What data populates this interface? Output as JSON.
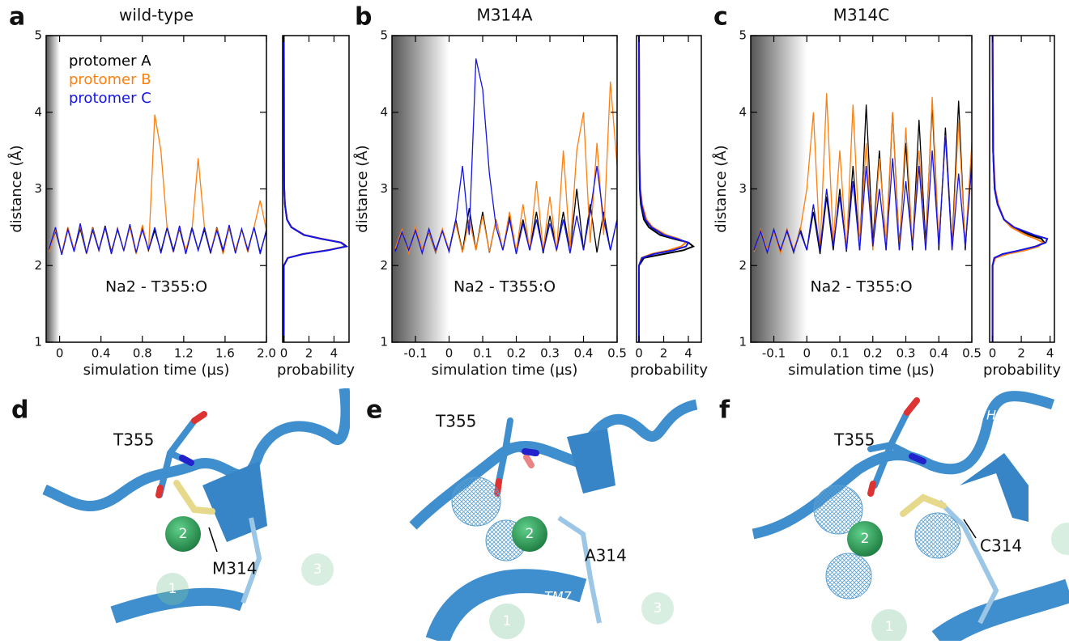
{
  "chart_data": [
    {
      "type": "line",
      "panel_label": "a",
      "title": "wild-type",
      "x_label": "simulation time (µs)",
      "y_label": "distance (Å)",
      "annotation": "Na2 - T355:O",
      "xlim": [
        -0.13,
        2.0
      ],
      "xticks": [
        0,
        0.4,
        0.8,
        1.2,
        1.6,
        {
          "value": 2,
          "label": "2.0"
        }
      ],
      "ylim": [
        1,
        5
      ],
      "yticks": [
        1,
        2,
        3,
        4,
        5
      ],
      "shaded_region": [
        -0.13,
        0
      ],
      "x": [
        -0.1,
        -0.04,
        0.02,
        0.08,
        0.14,
        0.2,
        0.26,
        0.32,
        0.38,
        0.44,
        0.5,
        0.56,
        0.62,
        0.68,
        0.74,
        0.8,
        0.86,
        0.92,
        0.98,
        1.04,
        1.1,
        1.16,
        1.22,
        1.28,
        1.34,
        1.4,
        1.46,
        1.52,
        1.58,
        1.64,
        1.7,
        1.76,
        1.82,
        1.88,
        1.94,
        2.0
      ],
      "series": [
        {
          "name": "protomer A",
          "color": "#000000",
          "values": [
            2.2,
            2.45,
            2.15,
            2.5,
            2.2,
            2.48,
            2.15,
            2.5,
            2.2,
            2.52,
            2.18,
            2.47,
            2.2,
            2.5,
            2.16,
            2.49,
            2.2,
            2.46,
            2.18,
            2.5,
            2.2,
            2.48,
            2.17,
            2.5,
            2.2,
            2.47,
            2.16,
            2.5,
            2.2,
            2.49,
            2.18,
            2.47,
            2.2,
            2.5,
            2.17,
            2.45
          ]
        },
        {
          "name": "protomer B",
          "color": "#ff7f0e",
          "values": [
            2.18,
            2.47,
            2.16,
            2.5,
            2.2,
            2.52,
            2.15,
            2.48,
            2.19,
            2.5,
            2.16,
            2.49,
            2.2,
            2.5,
            2.15,
            2.53,
            2.18,
            3.97,
            3.5,
            2.48,
            2.17,
            2.5,
            2.2,
            2.47,
            3.4,
            2.5,
            2.18,
            2.49,
            2.15,
            2.5,
            2.2,
            2.47,
            2.17,
            2.5,
            2.85,
            2.46
          ]
        },
        {
          "name": "protomer C",
          "color": "#1414e6",
          "values": [
            2.22,
            2.5,
            2.14,
            2.47,
            2.18,
            2.55,
            2.16,
            2.46,
            2.2,
            2.5,
            2.15,
            2.48,
            2.19,
            2.54,
            2.17,
            2.47,
            2.2,
            2.5,
            2.16,
            2.49,
            2.18,
            2.52,
            2.15,
            2.48,
            2.2,
            2.5,
            2.17,
            2.46,
            2.19,
            2.53,
            2.16,
            2.48,
            2.2,
            2.5,
            2.15,
            2.47
          ]
        }
      ]
    },
    {
      "type": "density",
      "x_label": "probability",
      "xlim": [
        -0.1,
        5.2
      ],
      "xticks": [
        0,
        2,
        4
      ],
      "ylim": [
        1,
        5
      ],
      "y": [
        1,
        2.0,
        2.1,
        2.15,
        2.2,
        2.25,
        2.3,
        2.35,
        2.4,
        2.5,
        2.6,
        2.8,
        3.0,
        3.5,
        5
      ],
      "series": [
        {
          "color": "#000000",
          "values": [
            0,
            0,
            0.3,
            1.5,
            3.5,
            5.0,
            4.6,
            3.0,
            1.6,
            0.6,
            0.25,
            0.08,
            0.03,
            0.01,
            0
          ]
        },
        {
          "color": "#ff7f0e",
          "values": [
            0,
            0,
            0.3,
            1.5,
            3.45,
            4.9,
            4.6,
            3.05,
            1.65,
            0.62,
            0.26,
            0.09,
            0.03,
            0.01,
            0
          ]
        },
        {
          "color": "#1414e6",
          "values": [
            0,
            0,
            0.32,
            1.55,
            3.55,
            4.95,
            4.55,
            2.95,
            1.6,
            0.6,
            0.25,
            0.08,
            0.03,
            0.01,
            0
          ]
        }
      ]
    },
    {
      "type": "line",
      "panel_label": "b",
      "title": "M314A",
      "x_label": "simulation time (µs)",
      "y_label": "distance (Å)",
      "annotation": "Na2 - T355:O",
      "xlim": [
        -0.17,
        0.5
      ],
      "xticks": [
        -0.1,
        0,
        0.1,
        0.2,
        0.3,
        0.4,
        0.5
      ],
      "ylim": [
        1,
        5
      ],
      "yticks": [
        1,
        2,
        3,
        4,
        5
      ],
      "shaded_region": [
        -0.17,
        0
      ],
      "x": [
        -0.16,
        -0.14,
        -0.12,
        -0.1,
        -0.08,
        -0.06,
        -0.04,
        -0.02,
        0,
        0.02,
        0.04,
        0.06,
        0.08,
        0.1,
        0.12,
        0.14,
        0.16,
        0.18,
        0.2,
        0.22,
        0.24,
        0.26,
        0.28,
        0.3,
        0.32,
        0.34,
        0.36,
        0.38,
        0.4,
        0.42,
        0.44,
        0.46,
        0.48,
        0.5
      ],
      "series": [
        {
          "color": "#000000",
          "values": [
            2.2,
            2.45,
            2.18,
            2.47,
            2.2,
            2.44,
            2.17,
            2.46,
            2.2,
            2.6,
            2.18,
            2.75,
            2.2,
            2.7,
            2.17,
            2.6,
            2.2,
            2.65,
            2.18,
            2.6,
            2.2,
            2.7,
            2.16,
            2.65,
            2.2,
            2.7,
            2.18,
            3.0,
            2.2,
            2.8,
            2.17,
            2.7,
            2.2,
            2.6
          ]
        },
        {
          "color": "#ff7f0e",
          "values": [
            2.22,
            2.47,
            2.16,
            2.5,
            2.2,
            2.45,
            2.18,
            2.48,
            2.2,
            2.55,
            2.17,
            2.6,
            2.2,
            2.65,
            2.18,
            2.6,
            2.2,
            2.7,
            2.18,
            2.8,
            2.2,
            3.1,
            2.2,
            2.9,
            2.18,
            3.5,
            2.2,
            3.5,
            4.0,
            2.3,
            3.6,
            2.4,
            4.4,
            3.3
          ]
        },
        {
          "color": "#1414e6",
          "values": [
            2.18,
            2.44,
            2.2,
            2.46,
            2.16,
            2.48,
            2.2,
            2.45,
            2.18,
            2.6,
            3.3,
            2.4,
            4.7,
            4.3,
            3.2,
            2.5,
            2.2,
            2.6,
            2.15,
            2.55,
            2.2,
            2.6,
            2.18,
            2.55,
            2.2,
            2.6,
            2.16,
            2.65,
            2.2,
            2.7,
            3.3,
            2.6,
            2.2,
            2.6
          ]
        }
      ]
    },
    {
      "type": "density",
      "x_label": "probability",
      "xlim": [
        -0.2,
        5.05
      ],
      "xticks": [
        0,
        2,
        4
      ],
      "ylim": [
        1,
        5
      ],
      "y": [
        1,
        2.0,
        2.1,
        2.15,
        2.2,
        2.25,
        2.3,
        2.35,
        2.4,
        2.5,
        2.6,
        2.8,
        3.0,
        3.5,
        5
      ],
      "series": [
        {
          "color": "#000000",
          "values": [
            0,
            0,
            0.4,
            2.0,
            3.6,
            4.4,
            4.0,
            2.8,
            1.7,
            0.8,
            0.4,
            0.15,
            0.06,
            0.02,
            0
          ]
        },
        {
          "color": "#ff7f0e",
          "values": [
            0,
            0,
            0.2,
            1.0,
            2.4,
            3.4,
            3.8,
            3.2,
            2.2,
            1.1,
            0.6,
            0.25,
            0.1,
            0.03,
            0
          ]
        },
        {
          "color": "#1414e6",
          "values": [
            0,
            0,
            0.25,
            1.2,
            2.8,
            3.8,
            4.0,
            3.0,
            2.0,
            1.0,
            0.5,
            0.2,
            0.08,
            0.02,
            0
          ]
        }
      ]
    },
    {
      "type": "line",
      "panel_label": "c",
      "title": "M314C",
      "x_label": "simulation time (µs)",
      "y_label": "distance (Å)",
      "annotation": "Na2 - T355:O",
      "xlim": [
        -0.17,
        0.5
      ],
      "xticks": [
        -0.1,
        0,
        0.1,
        0.2,
        0.3,
        0.4,
        0.5
      ],
      "ylim": [
        1,
        5
      ],
      "yticks": [
        1,
        2,
        3,
        4,
        5
      ],
      "shaded_region": [
        -0.17,
        0
      ],
      "x": [
        -0.16,
        -0.14,
        -0.12,
        -0.1,
        -0.08,
        -0.06,
        -0.04,
        -0.02,
        0,
        0.02,
        0.04,
        0.06,
        0.08,
        0.1,
        0.12,
        0.14,
        0.16,
        0.18,
        0.2,
        0.22,
        0.24,
        0.26,
        0.28,
        0.3,
        0.32,
        0.34,
        0.36,
        0.38,
        0.4,
        0.42,
        0.44,
        0.46,
        0.48,
        0.5
      ],
      "series": [
        {
          "color": "#000000",
          "values": [
            2.2,
            2.46,
            2.18,
            2.47,
            2.2,
            2.45,
            2.17,
            2.48,
            2.2,
            2.7,
            2.15,
            2.9,
            2.2,
            3.0,
            2.18,
            3.3,
            2.2,
            4.1,
            2.3,
            3.5,
            2.2,
            4.0,
            2.25,
            3.6,
            2.2,
            3.9,
            2.3,
            4.1,
            2.2,
            3.8,
            2.25,
            4.15,
            2.2,
            3.5
          ]
        },
        {
          "color": "#ff7f0e",
          "values": [
            2.18,
            2.47,
            2.2,
            2.45,
            2.16,
            2.48,
            2.2,
            2.46,
            3.0,
            4.0,
            2.2,
            4.25,
            2.3,
            3.5,
            2.2,
            4.1,
            2.25,
            3.6,
            2.2,
            3.4,
            2.3,
            4.0,
            2.2,
            3.8,
            2.25,
            3.5,
            2.2,
            4.2,
            2.3,
            3.7,
            2.2,
            3.9,
            2.25,
            3.6
          ]
        },
        {
          "color": "#1414e6",
          "values": [
            2.2,
            2.45,
            2.17,
            2.47,
            2.2,
            2.46,
            2.18,
            2.44,
            2.2,
            2.8,
            2.2,
            3.0,
            2.25,
            2.9,
            2.2,
            3.1,
            2.2,
            3.3,
            2.25,
            3.0,
            2.2,
            3.4,
            2.2,
            3.1,
            2.25,
            3.3,
            2.2,
            3.5,
            2.25,
            3.7,
            2.2,
            3.2,
            2.25,
            3.3
          ]
        }
      ]
    },
    {
      "type": "density",
      "x_label": "probability",
      "xlim": [
        -0.2,
        4.3
      ],
      "xticks": [
        0,
        2,
        4
      ],
      "ylim": [
        1,
        5
      ],
      "y": [
        1,
        2.0,
        2.1,
        2.15,
        2.2,
        2.25,
        2.3,
        2.35,
        2.4,
        2.5,
        2.6,
        2.8,
        3.0,
        3.5,
        5
      ],
      "series": [
        {
          "color": "#000000",
          "values": [
            0,
            0,
            0.15,
            0.8,
            2.0,
            3.0,
            3.6,
            3.4,
            2.6,
            1.4,
            0.8,
            0.35,
            0.15,
            0.04,
            0
          ]
        },
        {
          "color": "#ff7f0e",
          "values": [
            0,
            0,
            0.2,
            1.0,
            2.3,
            3.2,
            3.5,
            3.0,
            2.3,
            1.3,
            0.8,
            0.4,
            0.18,
            0.05,
            0
          ]
        },
        {
          "color": "#1414e6",
          "values": [
            0,
            0,
            0.12,
            0.7,
            1.9,
            3.0,
            3.7,
            3.8,
            2.9,
            1.5,
            0.8,
            0.35,
            0.15,
            0.04,
            0
          ]
        }
      ]
    }
  ],
  "structures": [
    {
      "panel_label": "d",
      "residue_labels": [
        "T355",
        "M314"
      ],
      "sodium_labels": [
        "2",
        "1",
        "3"
      ]
    },
    {
      "panel_label": "e",
      "residue_labels": [
        "T355",
        "A314"
      ],
      "helix_label": "TM7",
      "sodium_labels": [
        "2",
        "1",
        "3"
      ]
    },
    {
      "panel_label": "f",
      "residue_labels": [
        "T355",
        "C314"
      ],
      "helix_label": "HP2",
      "sodium_labels": [
        "2",
        "1"
      ]
    }
  ]
}
